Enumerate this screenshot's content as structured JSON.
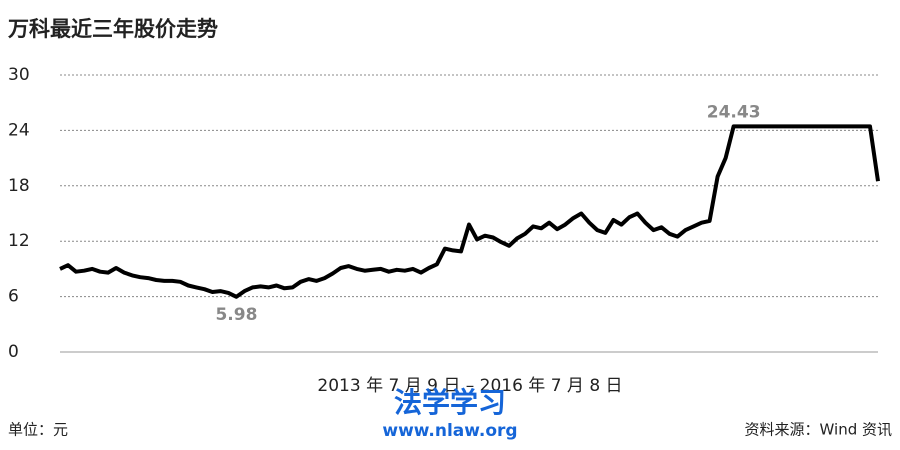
{
  "chart_data": {
    "type": "line",
    "title": "万科最近三年股价走势",
    "xlabel": "2013 年 7 月 9 日 – 2016 年 7 月 8 日",
    "unit_note": "单位：元",
    "source": "资料来源：Wind 资讯",
    "watermark": [
      "法学学习",
      "www.nlaw.org"
    ],
    "color": "#000000",
    "values": [
      9.0,
      9.4,
      8.7,
      8.8,
      9.0,
      8.7,
      8.6,
      9.1,
      8.6,
      8.3,
      8.1,
      8.0,
      7.8,
      7.7,
      7.7,
      7.6,
      7.2,
      7.0,
      6.8,
      6.5,
      6.6,
      6.4,
      5.98,
      6.6,
      7.0,
      7.1,
      7.0,
      7.2,
      6.9,
      7.0,
      7.6,
      7.9,
      7.7,
      8.0,
      8.5,
      9.1,
      9.3,
      9.0,
      8.8,
      8.9,
      9.0,
      8.7,
      8.9,
      8.8,
      9.0,
      8.6,
      9.1,
      9.5,
      11.2,
      11.0,
      10.9,
      13.8,
      12.2,
      12.6,
      12.4,
      11.9,
      11.5,
      12.3,
      12.8,
      13.6,
      13.4,
      14.0,
      13.3,
      13.8,
      14.5,
      15.0,
      14.0,
      13.2,
      12.9,
      14.3,
      13.8,
      14.6,
      15.0,
      14.0,
      13.2,
      13.5,
      12.8,
      12.5,
      13.2,
      13.6,
      14.0,
      14.2,
      19.0,
      21.0,
      24.43,
      24.43,
      24.43,
      24.43,
      24.43,
      24.43,
      24.43,
      24.43,
      24.43,
      24.43,
      24.43,
      24.43,
      24.43,
      24.43,
      24.43,
      24.43,
      24.43,
      24.43,
      18.5
    ],
    "ylim": [
      0,
      30
    ],
    "yticks": [
      0,
      6,
      12,
      18,
      24,
      30
    ],
    "grid": true
  }
}
